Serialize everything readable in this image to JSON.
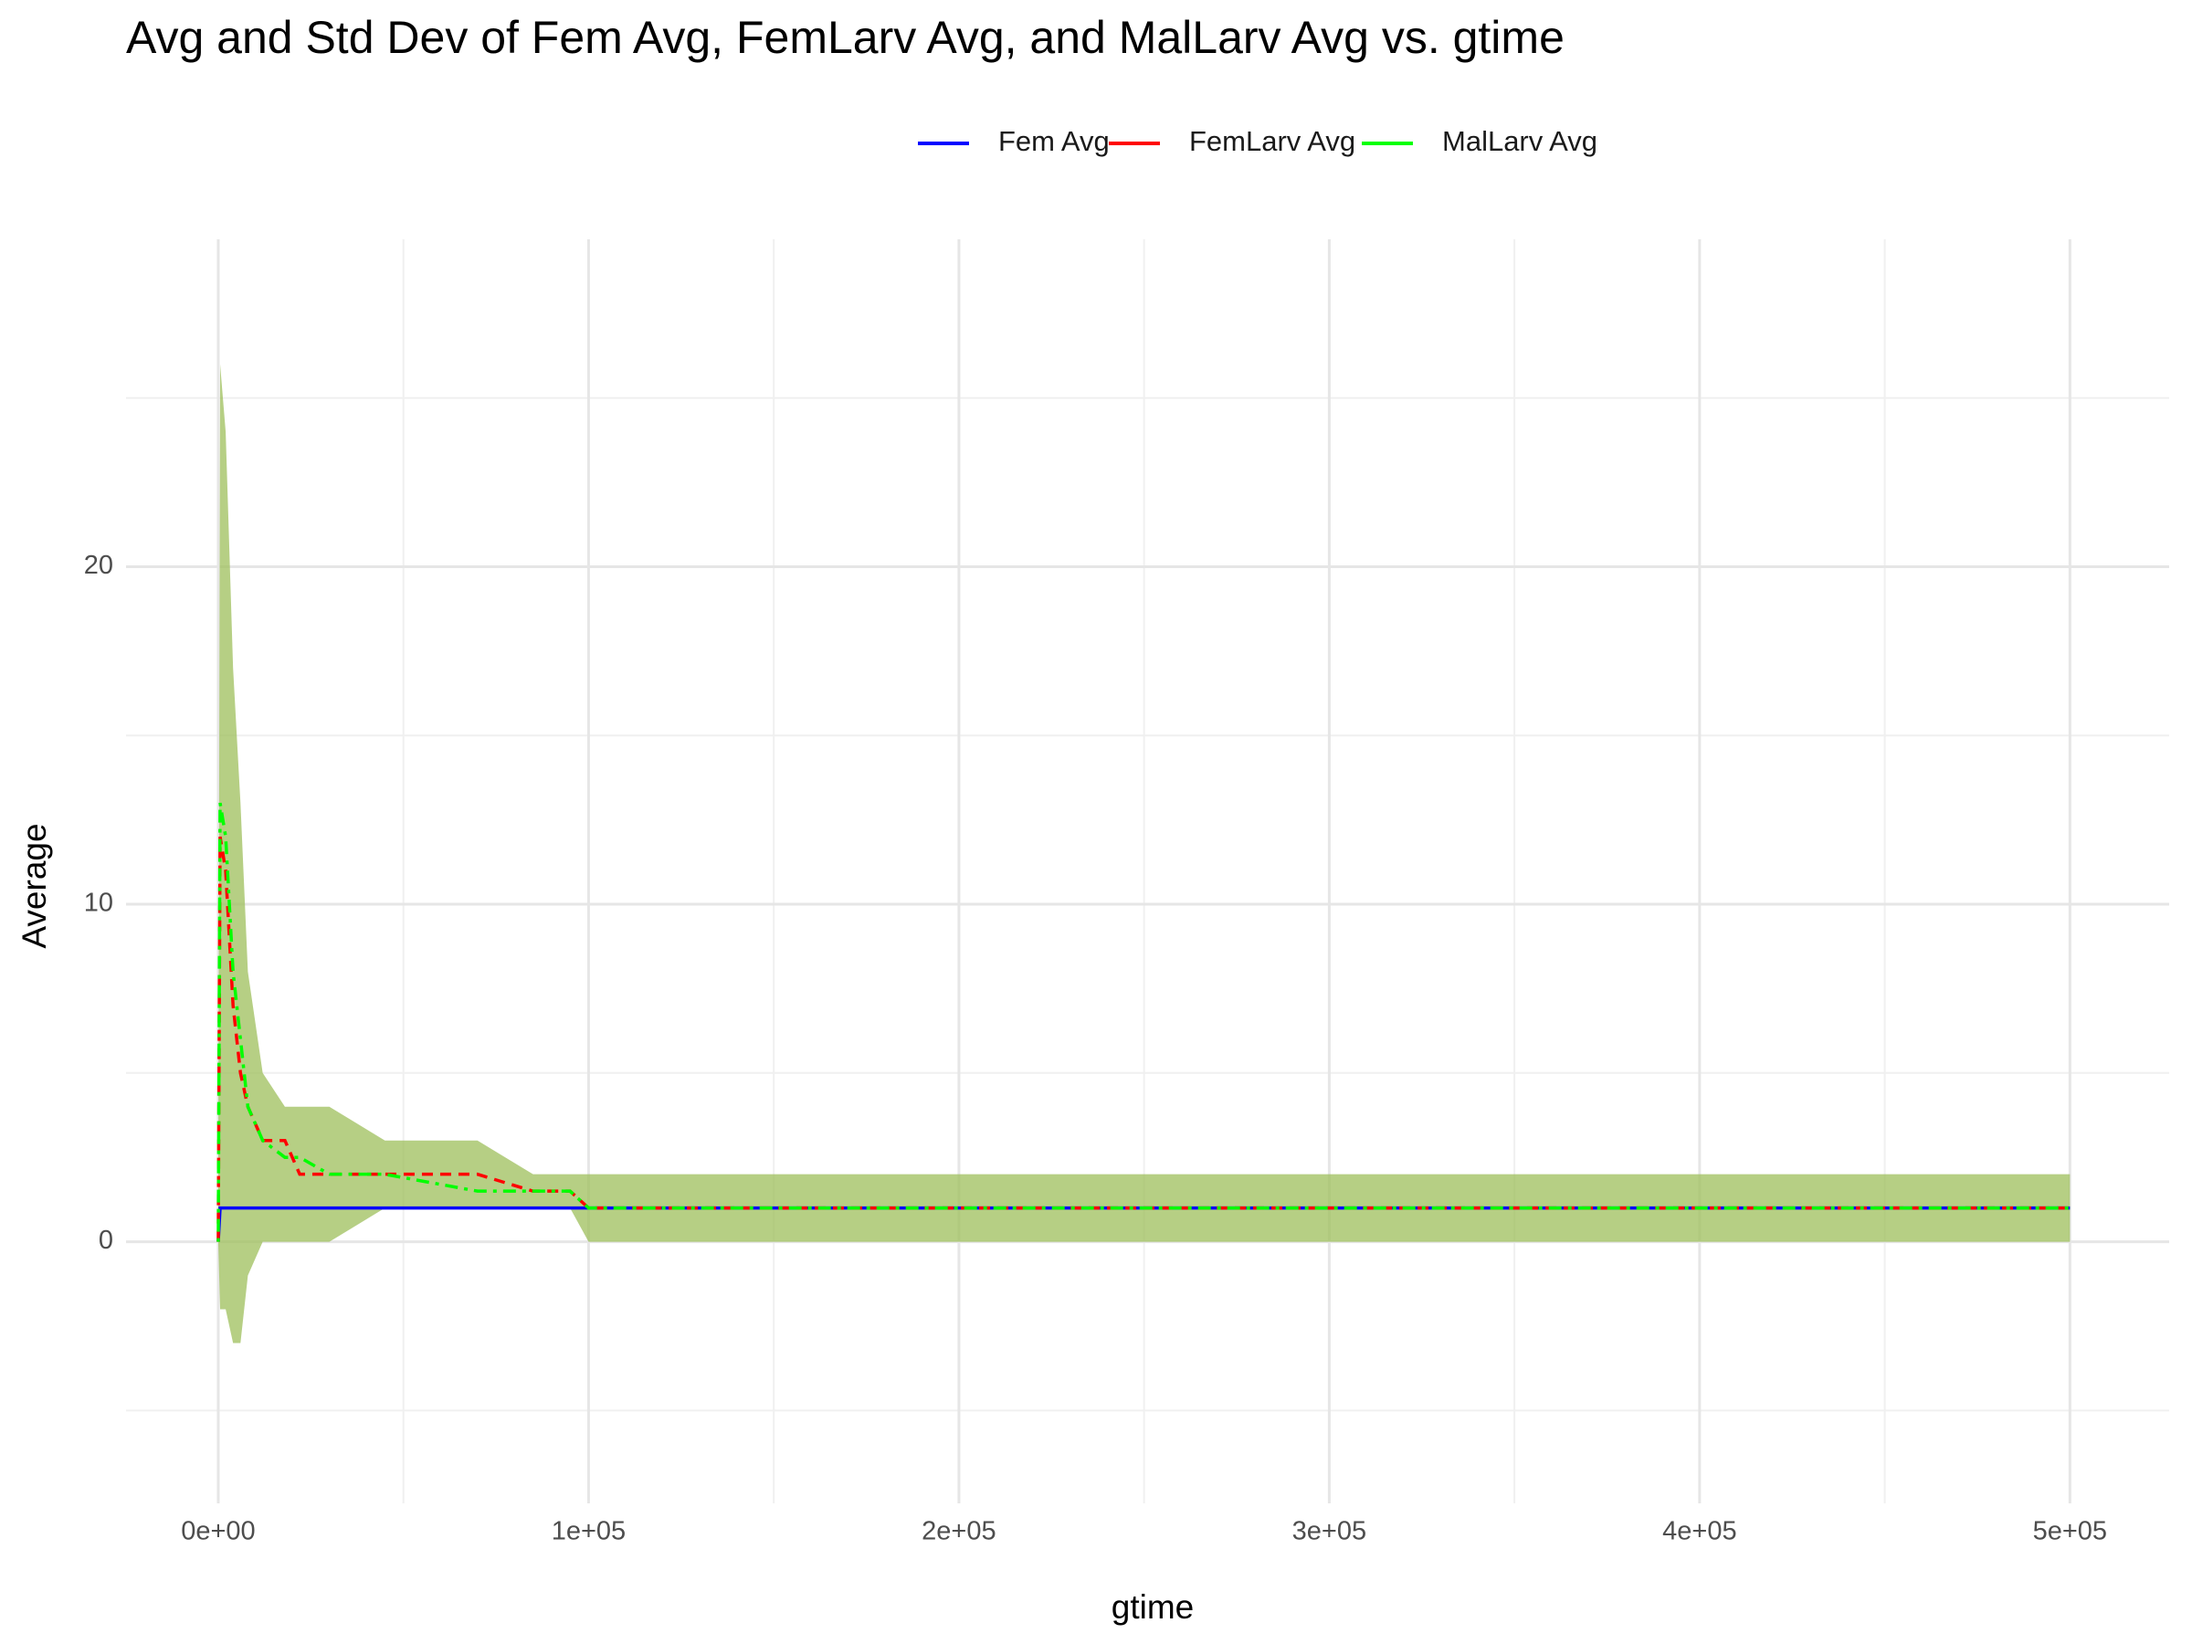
{
  "chart_data": {
    "type": "line",
    "title": "Avg and Std Dev of Fem Avg, FemLarv Avg, and MalLarv Avg vs. gtime",
    "x_label": "gtime",
    "y_label": "Average",
    "x": [
      0,
      500,
      2000,
      4000,
      6000,
      8000,
      12000,
      18000,
      22000,
      30000,
      45000,
      70000,
      85000,
      95000,
      100000,
      500000
    ],
    "series": [
      {
        "name": "Fem Avg",
        "color": "#0000ff",
        "dash": "solid",
        "values": [
          0,
          1,
          1,
          1,
          1,
          1,
          1,
          1,
          1,
          1,
          1,
          1,
          1,
          1,
          1,
          1
        ]
      },
      {
        "name": "FemLarv Avg",
        "color": "#ff0000",
        "dash": "dashed",
        "values": [
          0,
          12,
          11,
          7,
          5,
          4,
          3,
          3,
          2,
          2,
          2,
          2,
          1.5,
          1.5,
          1,
          1
        ]
      },
      {
        "name": "MalLarv Avg",
        "color": "#00ff00",
        "dash": "dotdash",
        "values": [
          0,
          13,
          12,
          8,
          6,
          4,
          3,
          2.5,
          2.5,
          2,
          2,
          1.5,
          1.5,
          1.5,
          1,
          1
        ]
      }
    ],
    "band": {
      "color": "#9dbf5b",
      "lower": [
        0,
        -2,
        -2,
        -3,
        -3,
        -1,
        0,
        0,
        0,
        0,
        1,
        1,
        1,
        1,
        0,
        0
      ],
      "upper": [
        1,
        26,
        24,
        17,
        13,
        8,
        5,
        4,
        4,
        4,
        3,
        3,
        2,
        2,
        2,
        2
      ]
    },
    "xlim": [
      -24900,
      526800
    ],
    "ylim": [
      -7.75,
      29.7
    ],
    "xticks": [
      {
        "value": 0,
        "label": "0e+00"
      },
      {
        "value": 100000,
        "label": "1e+05"
      },
      {
        "value": 200000,
        "label": "2e+05"
      },
      {
        "value": 300000,
        "label": "3e+05"
      },
      {
        "value": 400000,
        "label": "4e+05"
      },
      {
        "value": 500000,
        "label": "5e+05"
      }
    ],
    "x_minor_ticks": [
      50000,
      150000,
      250000,
      350000,
      450000
    ],
    "yticks": [
      0,
      10,
      20
    ],
    "y_minor_ticks": [
      -5,
      5,
      15,
      25
    ],
    "grid": true,
    "legend_position": "top"
  }
}
